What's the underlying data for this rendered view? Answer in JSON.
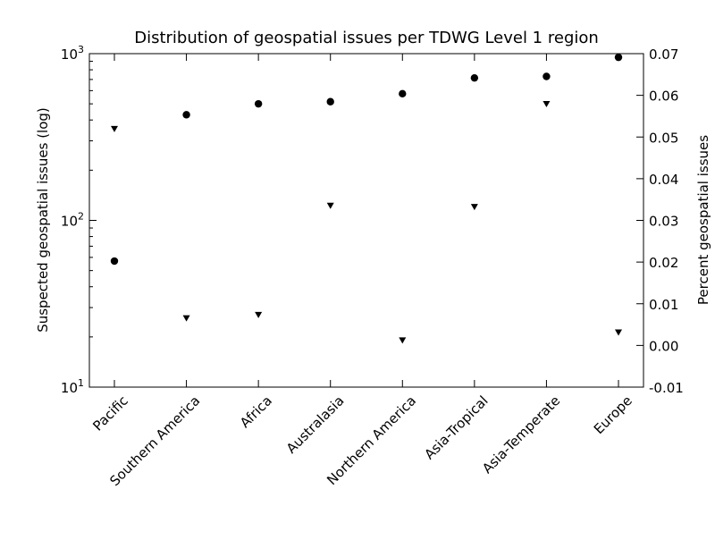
{
  "chart_data": {
    "type": "scatter",
    "title": "Distribution of geospatial issues per TDWG Level 1 region",
    "categories": [
      "Pacific",
      "Southern America",
      "Africa",
      "Australasia",
      "Northern America",
      "Asia-Tropical",
      "Asia-Temperate",
      "Europe"
    ],
    "y_left": {
      "label": "Suspected geospatial issues (log)",
      "scale": "log",
      "ylim": [
        10,
        1000
      ],
      "ticks": [
        {
          "value": 10,
          "base": "10",
          "exp": "1"
        },
        {
          "value": 100,
          "base": "10",
          "exp": "2"
        },
        {
          "value": 1000,
          "base": "10",
          "exp": "3"
        }
      ]
    },
    "y_right": {
      "label": "Percent geospatial issues",
      "scale": "linear",
      "ylim": [
        -0.01,
        0.07
      ],
      "ticks": [
        "-0.01",
        "0.00",
        "0.01",
        "0.02",
        "0.03",
        "0.04",
        "0.05",
        "0.06",
        "0.07"
      ]
    },
    "series": [
      {
        "axis": "left",
        "marker": "circle",
        "color": "#000000",
        "values": [
          57,
          430,
          500,
          515,
          575,
          715,
          730,
          950
        ]
      },
      {
        "axis": "right",
        "marker": "triangle-down",
        "color": "#000000",
        "values": [
          0.052,
          0.0066,
          0.0074,
          0.0336,
          0.0013,
          0.0333,
          0.058,
          0.0032
        ]
      }
    ],
    "grid": false
  }
}
